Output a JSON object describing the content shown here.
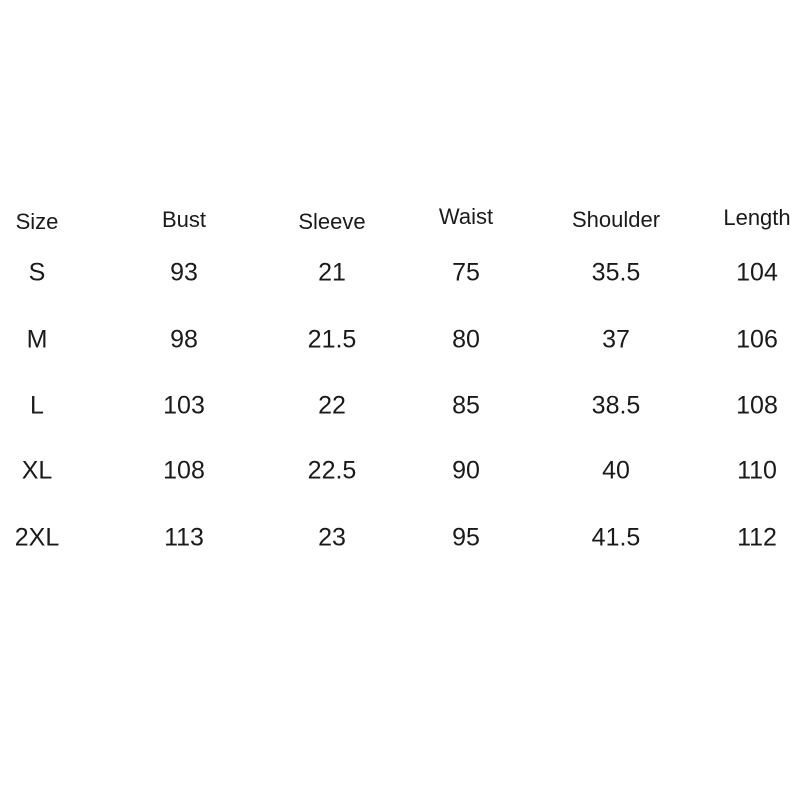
{
  "table": {
    "headers": [
      "Size",
      "Bust",
      "Sleeve",
      "Waist",
      "Shoulder",
      "Length"
    ],
    "rows": [
      [
        "S",
        "93",
        "21",
        "75",
        "35.5",
        "104"
      ],
      [
        "M",
        "98",
        "21.5",
        "80",
        "37",
        "106"
      ],
      [
        "L",
        "103",
        "22",
        "85",
        "38.5",
        "108"
      ],
      [
        "XL",
        "108",
        "22.5",
        "90",
        "40",
        "110"
      ],
      [
        "2XL",
        "113",
        "23",
        "95",
        "41.5",
        "112"
      ]
    ]
  }
}
